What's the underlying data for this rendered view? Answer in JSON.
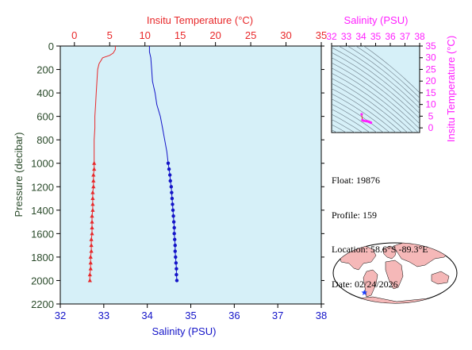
{
  "info": {
    "float": "Float: 19876",
    "profile": "Profile: 159",
    "location": "Location: 58.6°S -89.3°E",
    "date": "Date: 02/24/2026"
  },
  "colors": {
    "temperature": "#e8282a",
    "salinity": "#1414c8",
    "ts": "#ff20ff",
    "axes_green": "#2a4a2a",
    "plot_bg": "#d6f0f8",
    "land": "#f5b8b8"
  },
  "chart_data": [
    {
      "type": "line",
      "title": "",
      "ylabel": "Pressure (decibar)",
      "ylim": [
        2200,
        0
      ],
      "yticks": [
        "0",
        "200",
        "400",
        "600",
        "800",
        "1000",
        "1200",
        "1400",
        "1600",
        "1800",
        "2000",
        "2200"
      ],
      "x_top": {
        "label": "Insitu Temperature (°C)",
        "range": [
          -2,
          35
        ],
        "ticks": [
          "0",
          "5",
          "10",
          "15",
          "20",
          "25",
          "30",
          "35"
        ]
      },
      "x_bottom": {
        "label": "Salinity (PSU)",
        "range": [
          32,
          38
        ],
        "ticks": [
          "32",
          "33",
          "34",
          "35",
          "36",
          "37",
          "38"
        ]
      },
      "series": [
        {
          "variable": "temperature",
          "color": "#e8282a",
          "marker": "triangle",
          "profile": [
            [
              5.8,
              0
            ],
            [
              5.8,
              30
            ],
            [
              5.5,
              60
            ],
            [
              5.0,
              80
            ],
            [
              4.0,
              100
            ],
            [
              3.5,
              150
            ],
            [
              3.3,
              200
            ],
            [
              3.2,
              300
            ],
            [
              3.1,
              400
            ],
            [
              3.0,
              500
            ],
            [
              2.9,
              600
            ],
            [
              2.9,
              700
            ],
            [
              2.8,
              800
            ],
            [
              2.8,
              900
            ],
            [
              2.8,
              1000
            ]
          ],
          "points": [
            [
              2.8,
              1000
            ],
            [
              2.8,
              1050
            ],
            [
              2.7,
              1100
            ],
            [
              2.7,
              1150
            ],
            [
              2.7,
              1200
            ],
            [
              2.6,
              1250
            ],
            [
              2.6,
              1300
            ],
            [
              2.6,
              1350
            ],
            [
              2.6,
              1400
            ],
            [
              2.5,
              1450
            ],
            [
              2.5,
              1500
            ],
            [
              2.5,
              1550
            ],
            [
              2.5,
              1600
            ],
            [
              2.4,
              1650
            ],
            [
              2.4,
              1700
            ],
            [
              2.4,
              1750
            ],
            [
              2.3,
              1800
            ],
            [
              2.3,
              1850
            ],
            [
              2.3,
              1900
            ],
            [
              2.2,
              1950
            ],
            [
              2.2,
              2000
            ]
          ]
        },
        {
          "variable": "salinity",
          "color": "#1414c8",
          "marker": "circle",
          "profile": [
            [
              34.05,
              0
            ],
            [
              34.05,
              50
            ],
            [
              34.08,
              100
            ],
            [
              34.1,
              200
            ],
            [
              34.12,
              300
            ],
            [
              34.18,
              400
            ],
            [
              34.22,
              500
            ],
            [
              34.3,
              600
            ],
            [
              34.35,
              700
            ],
            [
              34.4,
              800
            ],
            [
              34.45,
              900
            ],
            [
              34.48,
              1000
            ]
          ],
          "points": [
            [
              34.48,
              1000
            ],
            [
              34.5,
              1050
            ],
            [
              34.52,
              1100
            ],
            [
              34.53,
              1150
            ],
            [
              34.55,
              1200
            ],
            [
              34.56,
              1250
            ],
            [
              34.57,
              1300
            ],
            [
              34.58,
              1350
            ],
            [
              34.59,
              1400
            ],
            [
              34.6,
              1450
            ],
            [
              34.61,
              1500
            ],
            [
              34.62,
              1550
            ],
            [
              34.62,
              1600
            ],
            [
              34.63,
              1650
            ],
            [
              34.64,
              1700
            ],
            [
              34.64,
              1750
            ],
            [
              34.65,
              1800
            ],
            [
              34.66,
              1850
            ],
            [
              34.67,
              1900
            ],
            [
              34.67,
              1950
            ],
            [
              34.68,
              2000
            ]
          ]
        }
      ]
    },
    {
      "type": "scatter",
      "title": "",
      "xlabel": "Salinity (PSU)",
      "ylabel": "Insitu Temperature (°C)",
      "xlim": [
        32,
        38
      ],
      "ylim": [
        -2,
        35
      ],
      "xticks": [
        "32",
        "33",
        "34",
        "35",
        "36",
        "37",
        "38"
      ],
      "yticks": [
        "0",
        "5",
        "10",
        "15",
        "20",
        "25",
        "30",
        "35"
      ],
      "points": [
        [
          34.05,
          5.8
        ],
        [
          34.1,
          3.3
        ],
        [
          34.2,
          3.0
        ],
        [
          34.35,
          2.9
        ],
        [
          34.45,
          2.8
        ],
        [
          34.55,
          2.6
        ],
        [
          34.62,
          2.4
        ],
        [
          34.68,
          2.2
        ]
      ]
    },
    {
      "type": "map",
      "marker": {
        "lat": -58.6,
        "lon": -89.3,
        "symbol": "star",
        "color": "#1a3cff"
      }
    }
  ]
}
